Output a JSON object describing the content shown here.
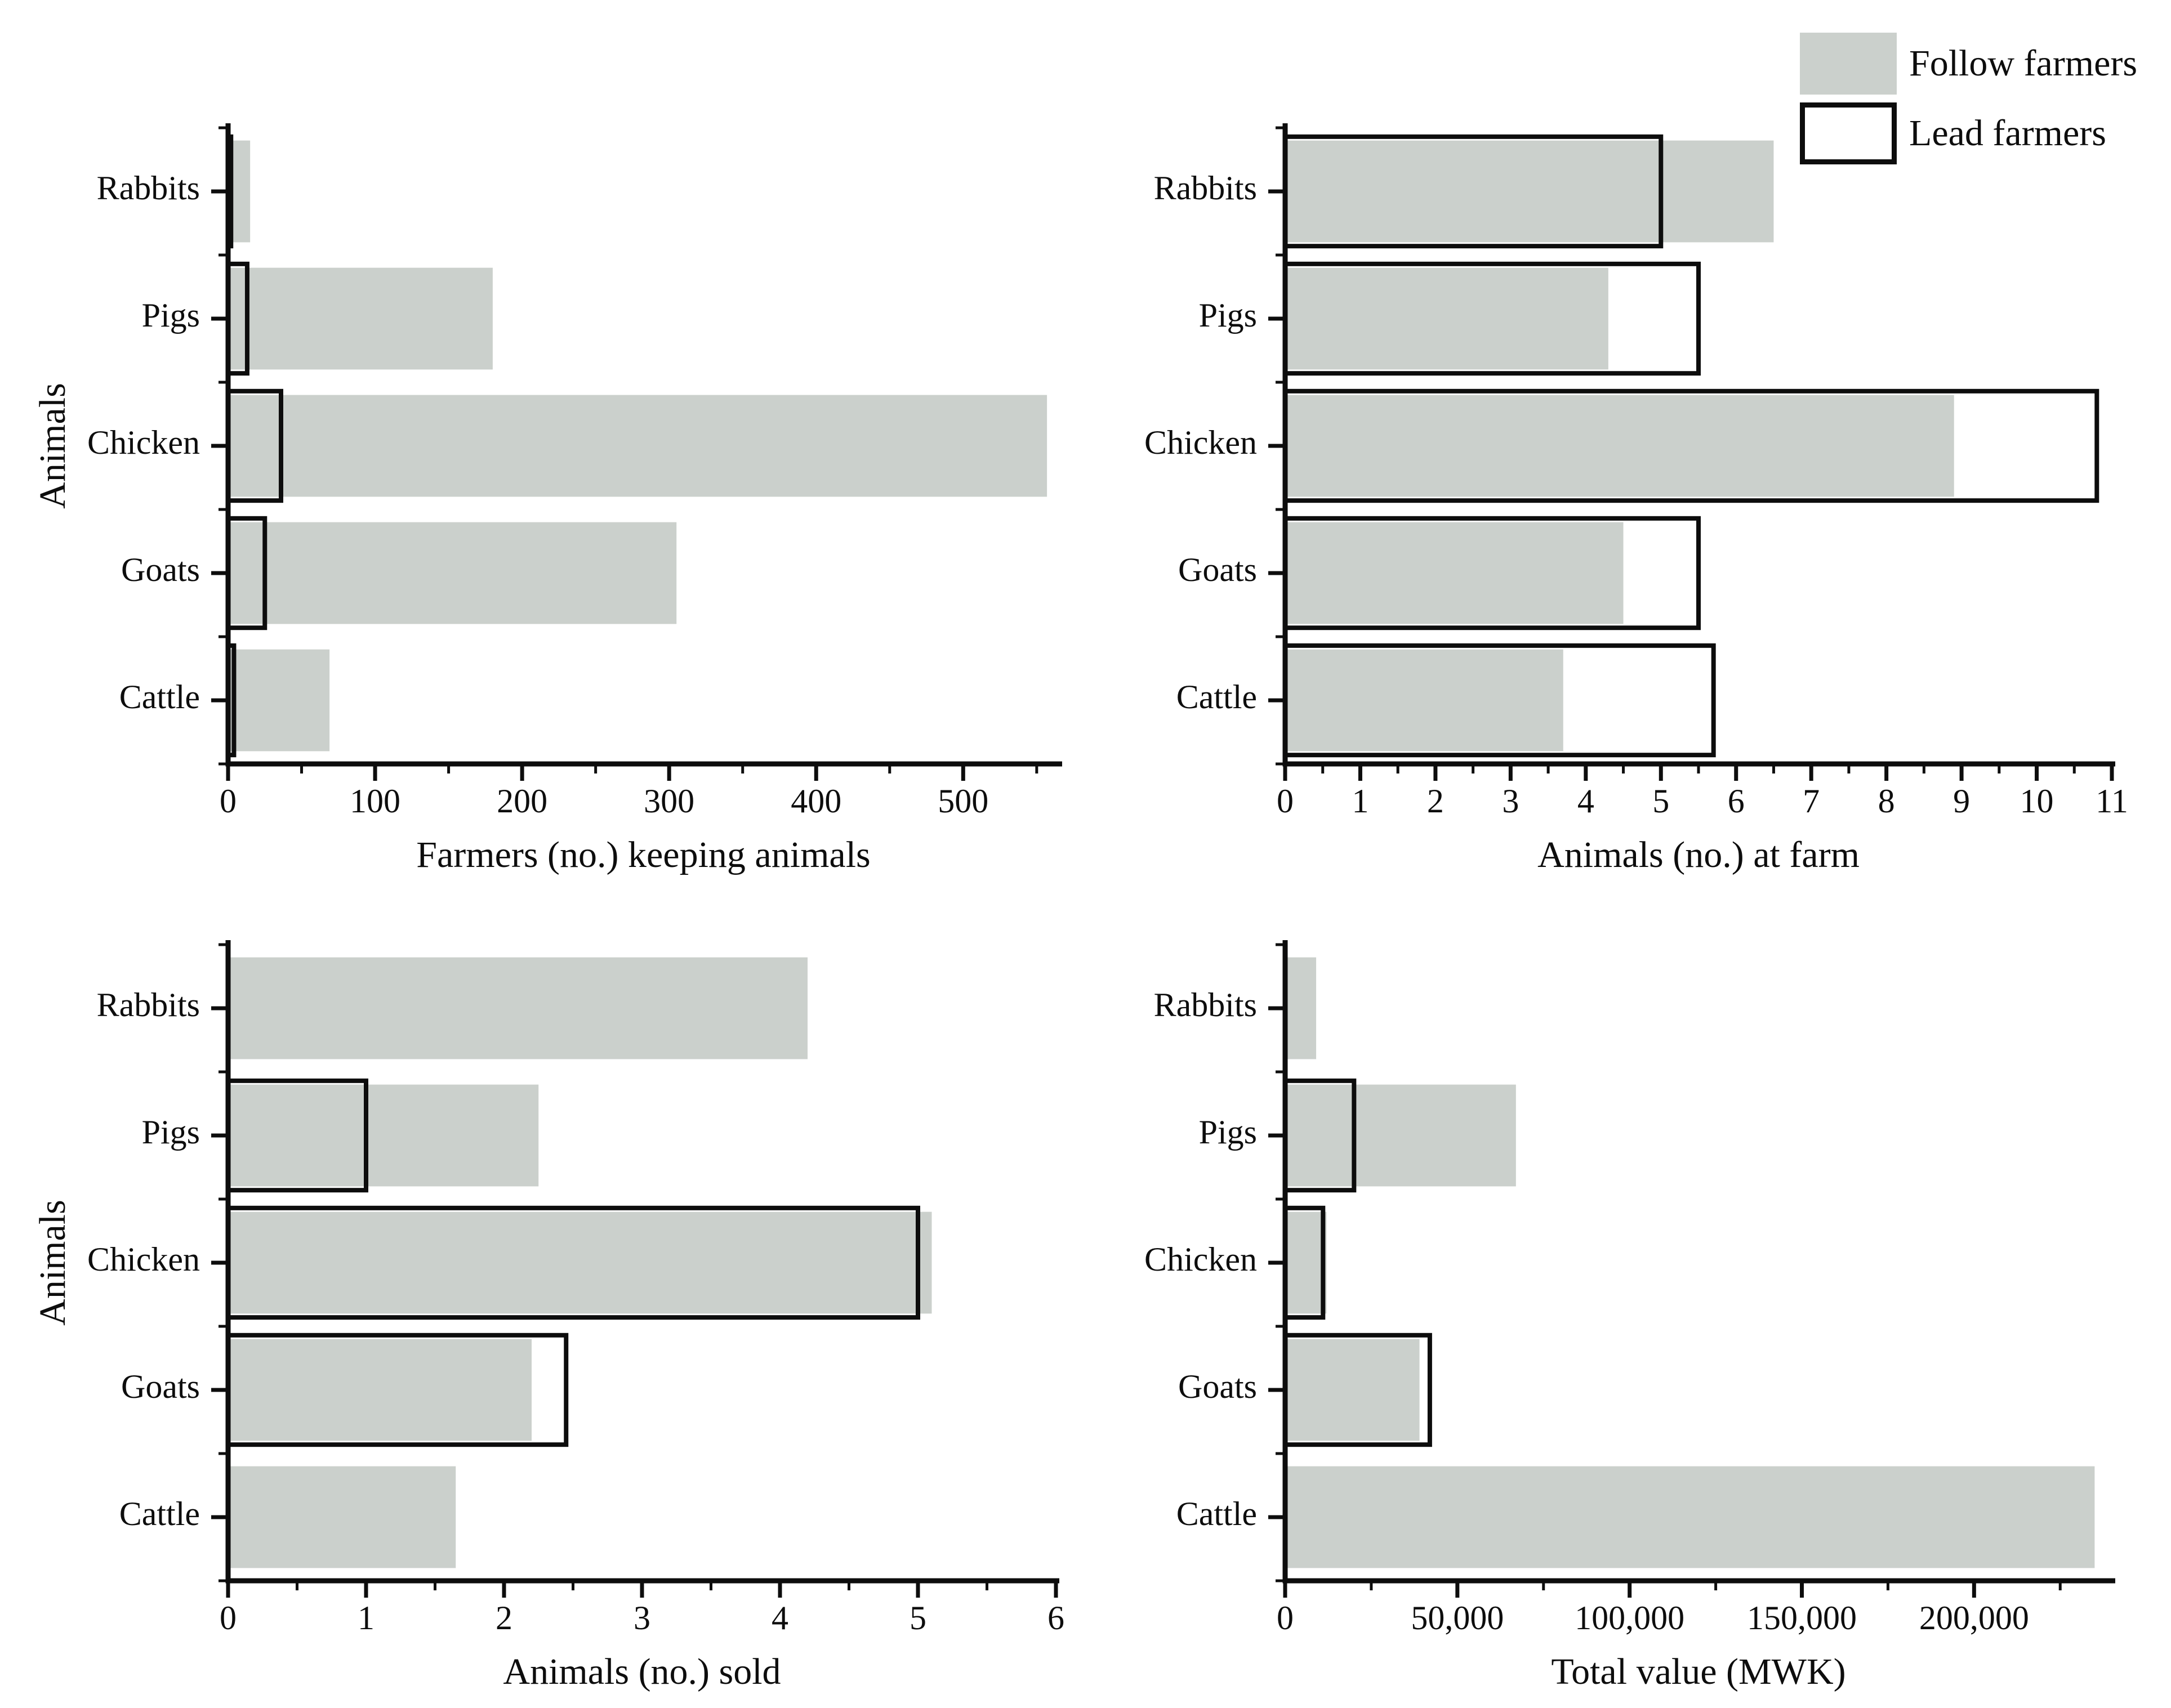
{
  "figure": {
    "background": "#ffffff",
    "bar_fill": "#cbd0cc",
    "outline_color": "#0d0d0d",
    "text_color": "#0d0d0d"
  },
  "legend": {
    "items": [
      {
        "label": "Follow farmers",
        "swatch": "gray-filled"
      },
      {
        "label": "Lead farmers",
        "swatch": "white-outlined"
      }
    ]
  },
  "categories": [
    "Rabbits",
    "Pigs",
    "Chicken",
    "Goats",
    "Cattle"
  ],
  "chart_data": [
    {
      "type": "bar",
      "orientation": "horizontal",
      "position": "top-left",
      "xlabel": "Farmers (no.) keeping animals",
      "ylabel": "Animals",
      "categories": [
        "Rabbits",
        "Pigs",
        "Chicken",
        "Goats",
        "Cattle"
      ],
      "series": [
        {
          "name": "Follow farmers",
          "values": [
            15,
            180,
            557,
            305,
            69
          ]
        },
        {
          "name": "Lead farmers",
          "values": [
            2,
            13,
            36,
            25,
            4
          ]
        }
      ],
      "xlim": [
        0,
        565
      ],
      "xticks": [
        0,
        100,
        200,
        300,
        400,
        500
      ],
      "xtick_labels": [
        "0",
        "100",
        "200",
        "300",
        "400",
        "500"
      ],
      "minor_step": 50,
      "grid": false,
      "legend_position": "top-right-of-figure"
    },
    {
      "type": "bar",
      "orientation": "horizontal",
      "position": "top-right",
      "xlabel": "Animals (no.) at farm",
      "ylabel": "",
      "categories": [
        "Rabbits",
        "Pigs",
        "Chicken",
        "Goats",
        "Cattle"
      ],
      "series": [
        {
          "name": "Follow farmers",
          "values": [
            6.5,
            4.3,
            8.9,
            4.5,
            3.7
          ]
        },
        {
          "name": "Lead farmers",
          "values": [
            5.0,
            5.5,
            10.8,
            5.5,
            5.7
          ]
        }
      ],
      "xlim": [
        0,
        11
      ],
      "xticks": [
        0,
        1,
        2,
        3,
        4,
        5,
        6,
        7,
        8,
        9,
        10,
        11
      ],
      "xtick_labels": [
        "0",
        "1",
        "2",
        "3",
        "4",
        "5",
        "6",
        "7",
        "8",
        "9",
        "10",
        "11"
      ],
      "minor_step": 0.5,
      "grid": false,
      "legend_position": "top-right-of-figure"
    },
    {
      "type": "bar",
      "orientation": "horizontal",
      "position": "bottom-left",
      "xlabel": "Animals (no.) sold",
      "ylabel": "Animals",
      "categories": [
        "Rabbits",
        "Pigs",
        "Chicken",
        "Goats",
        "Cattle"
      ],
      "series": [
        {
          "name": "Follow farmers",
          "values": [
            4.2,
            2.25,
            5.1,
            2.2,
            1.65
          ]
        },
        {
          "name": "Lead farmers",
          "values": [
            0,
            1.0,
            5.0,
            2.45,
            0
          ]
        }
      ],
      "xlim": [
        0,
        6
      ],
      "xticks": [
        0,
        1,
        2,
        3,
        4,
        5,
        6
      ],
      "xtick_labels": [
        "0",
        "1",
        "2",
        "3",
        "4",
        "5",
        "6"
      ],
      "minor_step": 0.5,
      "grid": false,
      "legend_position": "top-right-of-figure"
    },
    {
      "type": "bar",
      "orientation": "horizontal",
      "position": "bottom-right",
      "xlabel": "Total value (MWK)",
      "ylabel": "",
      "categories": [
        "Rabbits",
        "Pigs",
        "Chicken",
        "Goats",
        "Cattle"
      ],
      "series": [
        {
          "name": "Follow farmers",
          "values": [
            9000,
            67000,
            12000,
            39000,
            235000
          ]
        },
        {
          "name": "Lead farmers",
          "values": [
            0,
            20000,
            11000,
            42000,
            0
          ]
        }
      ],
      "xlim": [
        0,
        240000
      ],
      "xticks": [
        0,
        50000,
        100000,
        150000,
        200000
      ],
      "xtick_labels": [
        "0",
        "50,000",
        "100,000",
        "150,000",
        "200,000"
      ],
      "minor_step": 25000,
      "grid": false,
      "legend_position": "top-right-of-figure"
    }
  ]
}
